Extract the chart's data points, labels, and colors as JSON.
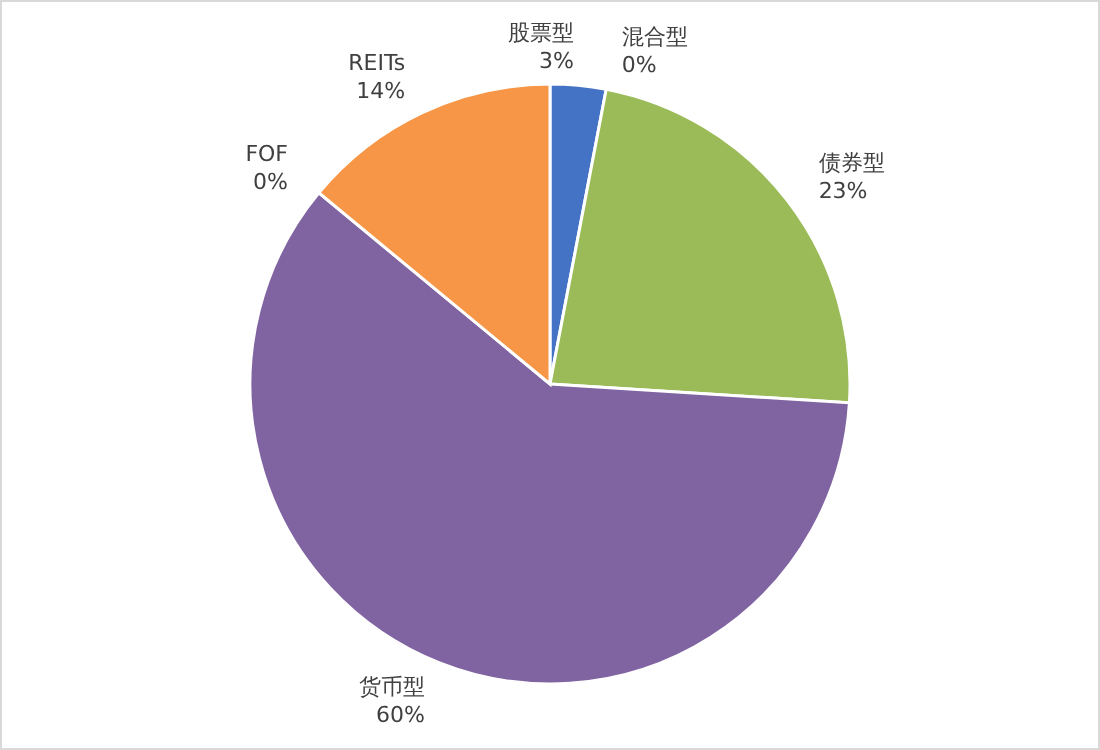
{
  "chart_data": {
    "type": "pie",
    "categories": [
      "股票型",
      "混合型",
      "债券型",
      "货币型",
      "FOF",
      "REITs"
    ],
    "values": [
      3,
      0,
      23,
      60,
      0,
      14
    ],
    "value_labels": [
      "3%",
      "0%",
      "23%",
      "60%",
      "0%",
      "14%"
    ],
    "colors": [
      "#4472c4",
      "#c0504d",
      "#9bbb59",
      "#8064a2",
      "#4bacc6",
      "#f79646"
    ]
  }
}
